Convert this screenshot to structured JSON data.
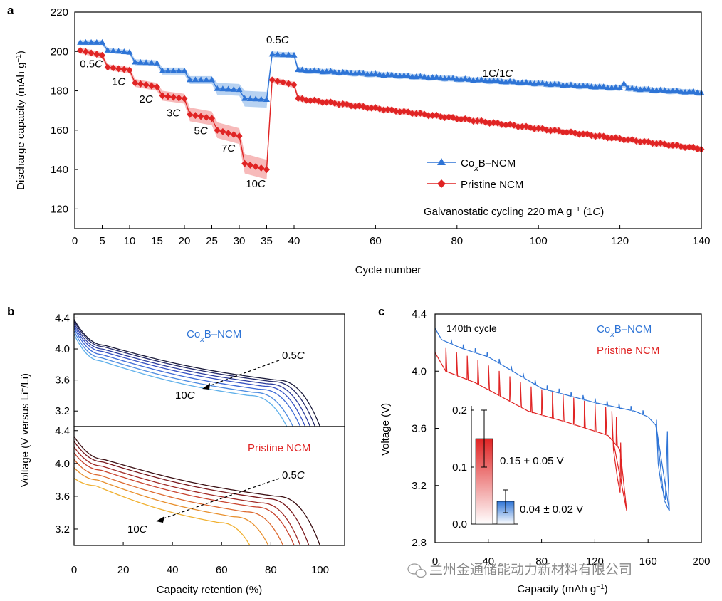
{
  "colors": {
    "blue": "#2e74d6",
    "red": "#e02424",
    "blue_band": "#9fc3ee",
    "red_band": "#f4a3a3",
    "axis": "#000000"
  },
  "chart_data": [
    {
      "panel_label": "a",
      "type": "line",
      "title": "",
      "xlabel": "Cycle number",
      "ylabel_parts": [
        "Discharge capacity (mAh g",
        "−1",
        ")"
      ],
      "xlim": [
        0,
        140
      ],
      "xticks": [
        0,
        5,
        10,
        15,
        20,
        25,
        30,
        35,
        40,
        60,
        80,
        100,
        120,
        140
      ],
      "ylim": [
        110,
        220
      ],
      "yticks": [
        120,
        140,
        160,
        180,
        200,
        220
      ],
      "rate_labels": [
        {
          "text": "0.5",
          "x": 3,
          "y": 192
        },
        {
          "text": "1",
          "x": 8,
          "y": 183
        },
        {
          "text": "2",
          "x": 13,
          "y": 174
        },
        {
          "text": "3",
          "x": 18,
          "y": 167
        },
        {
          "text": "5",
          "x": 23,
          "y": 158
        },
        {
          "text": "7",
          "x": 28,
          "y": 149
        },
        {
          "text": "10",
          "x": 33,
          "y": 131
        },
        {
          "text": "0.5",
          "x": 37,
          "y": 204
        },
        {
          "text": "1C/1",
          "x": 90,
          "y": 187
        }
      ],
      "c_suffix": "C",
      "legend": [
        {
          "name_parts": [
            "Co",
            "x",
            "B–NCM"
          ],
          "marker": "triangle",
          "color": "#2e74d6"
        },
        {
          "name_parts": [
            "Pristine NCM"
          ],
          "marker": "diamond",
          "color": "#e02424"
        }
      ],
      "annotation_parts": [
        "Galvanostatic cycling 220 mA g",
        "−1",
        " (1",
        "C",
        ")"
      ],
      "series": [
        {
          "name": "CoxB–NCM",
          "color": "#2e74d6",
          "segments": [
            {
              "x0": 1,
              "x1": 5,
              "v0": 204.5,
              "v1": 204.5,
              "band": 1.2
            },
            {
              "x0": 6,
              "x1": 10,
              "v0": 200.5,
              "v1": 199.5,
              "band": 1.2
            },
            {
              "x0": 11,
              "x1": 15,
              "v0": 194.5,
              "v1": 194,
              "band": 1.5
            },
            {
              "x0": 16,
              "x1": 20,
              "v0": 190,
              "v1": 190,
              "band": 1.8
            },
            {
              "x0": 21,
              "x1": 25,
              "v0": 185.5,
              "v1": 185.5,
              "band": 2.0
            },
            {
              "x0": 26,
              "x1": 30,
              "v0": 181,
              "v1": 180.5,
              "band": 3.0
            },
            {
              "x0": 31,
              "x1": 35,
              "v0": 176,
              "v1": 175.5,
              "band": 4.0
            },
            {
              "x0": 36,
              "x1": 40,
              "v0": 198.5,
              "v1": 198,
              "band": 1.5
            },
            {
              "x0": 41,
              "x1": 140,
              "v0": 190.5,
              "v1": 179,
              "band": 1.5
            }
          ],
          "outliers": [
            {
              "x": 121,
              "y": 183.5
            }
          ]
        },
        {
          "name": "Pristine NCM",
          "color": "#e02424",
          "segments": [
            {
              "x0": 1,
              "x1": 5,
              "v0": 200.5,
              "v1": 198,
              "band": 1.5
            },
            {
              "x0": 6,
              "x1": 10,
              "v0": 192,
              "v1": 190.5,
              "band": 1.5
            },
            {
              "x0": 11,
              "x1": 15,
              "v0": 184,
              "v1": 182,
              "band": 2.0
            },
            {
              "x0": 16,
              "x1": 20,
              "v0": 177.5,
              "v1": 176,
              "band": 2.5
            },
            {
              "x0": 21,
              "x1": 25,
              "v0": 168,
              "v1": 166,
              "band": 3.5
            },
            {
              "x0": 26,
              "x1": 30,
              "v0": 160,
              "v1": 157,
              "band": 4.0
            },
            {
              "x0": 31,
              "x1": 35,
              "v0": 143,
              "v1": 140,
              "band": 5.0
            },
            {
              "x0": 36,
              "x1": 40,
              "v0": 185.5,
              "v1": 183,
              "band": 1.5
            },
            {
              "x0": 41,
              "x1": 140,
              "v0": 176,
              "v1": 150.5,
              "band": 1.5
            }
          ]
        }
      ]
    },
    {
      "panel_label": "b",
      "type": "line",
      "xlabel": "Capacity retention (%)",
      "ylabel_parts": [
        "Voltage (V versus Li",
        "+",
        "/Li)"
      ],
      "xlim": [
        0,
        110
      ],
      "xticks": [
        0,
        20,
        40,
        60,
        80,
        100
      ],
      "ylim": [
        3.0,
        4.45
      ],
      "yticks": [
        3.2,
        3.6,
        4.0,
        4.4
      ],
      "subpanels": [
        {
          "label_parts": [
            "Co",
            "x",
            "B–NCM"
          ],
          "label_color": "#2e74d6",
          "arrow_start": "0.5",
          "arrow_end": "10",
          "curves": [
            {
              "rate": "0.5C",
              "end": 100.0,
              "v0": 4.38,
              "vplat": 3.6,
              "color": "#1a1a3a"
            },
            {
              "rate": "1C",
              "end": 98.0,
              "v0": 4.36,
              "vplat": 3.58,
              "color": "#252a6a"
            },
            {
              "rate": "2C",
              "end": 96.0,
              "v0": 4.33,
              "vplat": 3.55,
              "color": "#2c3c9c"
            },
            {
              "rate": "3C",
              "end": 94.0,
              "v0": 4.3,
              "vplat": 3.52,
              "color": "#3550c2"
            },
            {
              "rate": "5C",
              "end": 92.0,
              "v0": 4.27,
              "vplat": 3.48,
              "color": "#3d6ad6"
            },
            {
              "rate": "7C",
              "end": 89.0,
              "v0": 4.23,
              "vplat": 3.44,
              "color": "#4d8be0"
            },
            {
              "rate": "10C",
              "end": 86.5,
              "v0": 4.19,
              "vplat": 3.4,
              "color": "#5fb0ea"
            }
          ]
        },
        {
          "label_parts": [
            "Pristine NCM"
          ],
          "label_color": "#e02424",
          "arrow_start": "0.5",
          "arrow_end": "10",
          "curves": [
            {
              "rate": "0.5C",
              "end": 100.0,
              "v0": 4.33,
              "vplat": 3.6,
              "color": "#3a0e12"
            },
            {
              "rate": "1C",
              "end": 95.5,
              "v0": 4.27,
              "vplat": 3.57,
              "color": "#7a1a1e"
            },
            {
              "rate": "2C",
              "end": 92.0,
              "v0": 4.2,
              "vplat": 3.52,
              "color": "#a02a26"
            },
            {
              "rate": "3C",
              "end": 89.5,
              "v0": 4.13,
              "vplat": 3.47,
              "color": "#c8432e"
            },
            {
              "rate": "5C",
              "end": 85.0,
              "v0": 4.05,
              "vplat": 3.41,
              "color": "#dd6a30"
            },
            {
              "rate": "7C",
              "end": 79.0,
              "v0": 3.95,
              "vplat": 3.35,
              "color": "#e8902e"
            },
            {
              "rate": "10C",
              "end": 71.5,
              "v0": 3.82,
              "vplat": 3.28,
              "color": "#f0b030"
            }
          ]
        }
      ]
    },
    {
      "panel_label": "c",
      "type": "line",
      "title": "140th cycle",
      "xlabel_parts": [
        "Capacity (mAh g",
        "−1",
        ")"
      ],
      "ylabel": "Voltage (V)",
      "xlim": [
        0,
        200
      ],
      "xticks": [
        0,
        40,
        80,
        120,
        160,
        200
      ],
      "ylim": [
        2.8,
        4.4
      ],
      "yticks": [
        2.8,
        3.2,
        3.6,
        4.0,
        4.4
      ],
      "legend": [
        {
          "name_parts": [
            "Co",
            "x",
            "B–NCM"
          ],
          "color": "#2e74d6"
        },
        {
          "name_parts": [
            "Pristine NCM"
          ],
          "color": "#e02424"
        }
      ],
      "series": [
        {
          "name": "CoxB–NCM",
          "color": "#2e74d6",
          "start_v": 4.3,
          "base": [
            [
              0,
              4.3
            ],
            [
              5,
              4.22
            ],
            [
              20,
              4.16
            ],
            [
              40,
              4.1
            ],
            [
              80,
              3.88
            ],
            [
              120,
              3.78
            ],
            [
              150,
              3.72
            ],
            [
              160,
              3.68
            ],
            [
              166,
              3.62
            ],
            [
              172,
              3.1
            ],
            [
              176,
              3.02
            ]
          ],
          "spike": 0.03,
          "spike_every": 9,
          "spike_start": 12,
          "final_drop_x": [
            166,
            176
          ]
        },
        {
          "name": "Pristine NCM",
          "color": "#e02424",
          "start_v": 4.13,
          "base": [
            [
              0,
              4.13
            ],
            [
              8,
              4.0
            ],
            [
              30,
              3.92
            ],
            [
              70,
              3.72
            ],
            [
              100,
              3.64
            ],
            [
              130,
              3.55
            ],
            [
              139,
              3.45
            ],
            [
              144,
              3.02
            ]
          ],
          "spike": 0.16,
          "spike_every": 8,
          "spike_start": 8,
          "final_drop_x": [
            139,
            144
          ]
        }
      ],
      "inset": {
        "type": "bar",
        "ylim": [
          0,
          0.2
        ],
        "yticks": [
          0.0,
          0.1,
          0.2
        ],
        "bars": [
          {
            "name": "Pristine NCM",
            "value": 0.15,
            "err": 0.05,
            "label": "0.15 + 0.05 V",
            "color": "#e02424"
          },
          {
            "name": "CoxB–NCM",
            "value": 0.04,
            "err": 0.02,
            "label": "0.04 ± 0.02 V",
            "color": "#2e74d6"
          }
        ]
      }
    }
  ],
  "watermark": "兰州金通储能动力新材料有限公司"
}
